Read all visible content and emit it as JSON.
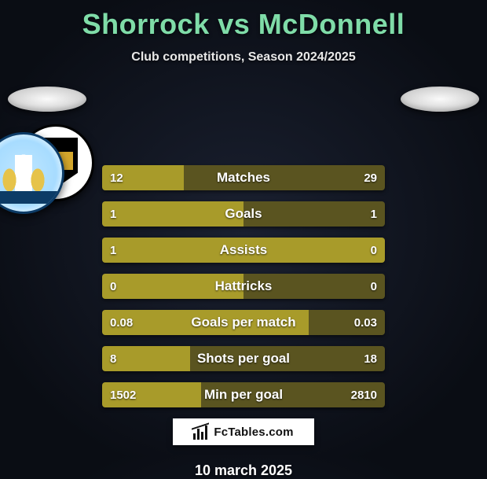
{
  "title_color": "#7fdca8",
  "title_parts": {
    "left": "Shorrock",
    "vs": "vs",
    "right": "McDonnell"
  },
  "subtitle": "Club competitions, Season 2024/2025",
  "bar_colors": {
    "left": "#a89b2a",
    "right": "#5a5420"
  },
  "bars": [
    {
      "label": "Matches",
      "left": "12",
      "right": "29",
      "left_pct": 29,
      "right_pct": 71
    },
    {
      "label": "Goals",
      "left": "1",
      "right": "1",
      "left_pct": 50,
      "right_pct": 50
    },
    {
      "label": "Assists",
      "left": "1",
      "right": "0",
      "left_pct": 100,
      "right_pct": 0
    },
    {
      "label": "Hattricks",
      "left": "0",
      "right": "0",
      "left_pct": 50,
      "right_pct": 50
    },
    {
      "label": "Goals per match",
      "left": "0.08",
      "right": "0.03",
      "left_pct": 73,
      "right_pct": 27
    },
    {
      "label": "Shots per goal",
      "left": "8",
      "right": "18",
      "left_pct": 31,
      "right_pct": 69
    },
    {
      "label": "Min per goal",
      "left": "1502",
      "right": "2810",
      "left_pct": 35,
      "right_pct": 65
    }
  ],
  "logo_text": "FcTables.com",
  "date": "10 march 2025"
}
